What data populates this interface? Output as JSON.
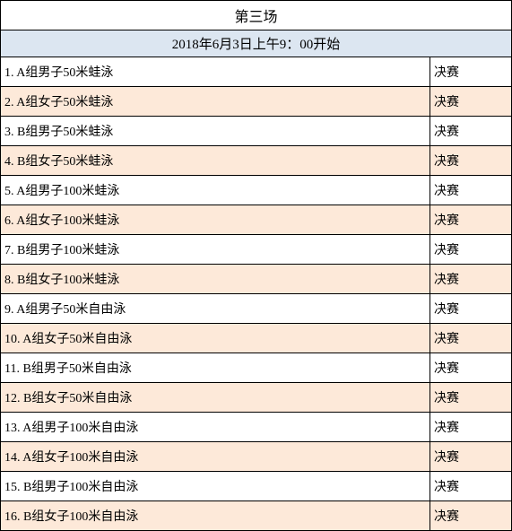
{
  "title": "第三场",
  "subtitle": "2018年6月3日上午9：00开始",
  "subtitle_bg": "#dce6f1",
  "row_alt_bg": "#fde9d9",
  "row_bg": "#ffffff",
  "rows": [
    {
      "num": "1",
      "event": "A组男子50米蛙泳",
      "status": "决赛"
    },
    {
      "num": "2",
      "event": "A组女子50米蛙泳",
      "status": "决赛"
    },
    {
      "num": "3",
      "event": "B组男子50米蛙泳",
      "status": "决赛"
    },
    {
      "num": "4",
      "event": "B组女子50米蛙泳",
      "status": "决赛"
    },
    {
      "num": "5",
      "event": "A组男子100米蛙泳",
      "status": "决赛"
    },
    {
      "num": "6",
      "event": "A组女子100米蛙泳",
      "status": "决赛"
    },
    {
      "num": "7",
      "event": "B组男子100米蛙泳",
      "status": "决赛"
    },
    {
      "num": "8",
      "event": "B组女子100米蛙泳",
      "status": "决赛"
    },
    {
      "num": "9",
      "event": "A组男子50米自由泳",
      "status": "决赛"
    },
    {
      "num": "10",
      "event": "A组女子50米自由泳",
      "status": "决赛"
    },
    {
      "num": "11",
      "event": "B组男子50米自由泳",
      "status": "决赛"
    },
    {
      "num": "12",
      "event": "B组女子50米自由泳",
      "status": "决赛"
    },
    {
      "num": "13",
      "event": "A组男子100米自由泳",
      "status": "决赛"
    },
    {
      "num": "14",
      "event": "A组女子100米自由泳",
      "status": "决赛"
    },
    {
      "num": "15",
      "event": "B组男子100米自由泳",
      "status": "决赛"
    },
    {
      "num": "16",
      "event": "B组女子100米自由泳",
      "status": "决赛"
    }
  ]
}
